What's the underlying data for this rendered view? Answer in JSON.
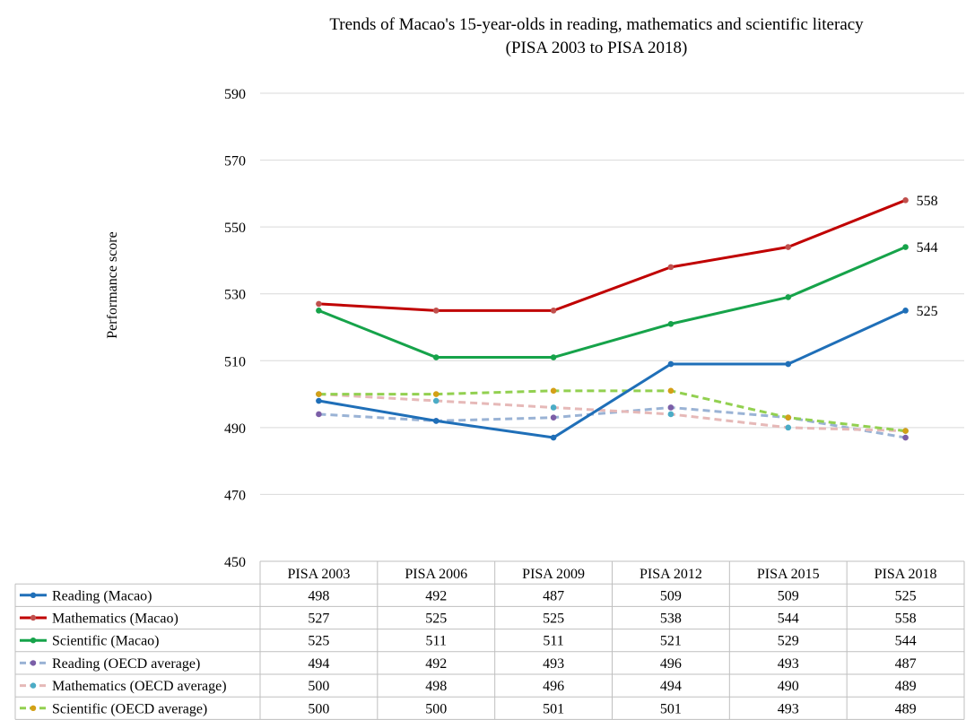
{
  "chart_data": {
    "type": "line",
    "title": "Trends of Macao's 15-year-olds in reading, mathematics and scientific literacy",
    "subtitle": "(PISA 2003 to PISA 2018)",
    "ylabel": "Performance score",
    "xlabel": "",
    "ylim": [
      450,
      590
    ],
    "yticks": [
      450,
      470,
      490,
      510,
      530,
      550,
      570,
      590
    ],
    "grid": true,
    "legend": "data-table-below",
    "categories": [
      "PISA 2003",
      "PISA 2006",
      "PISA 2009",
      "PISA 2012",
      "PISA 2015",
      "PISA 2018"
    ],
    "series": [
      {
        "name": "Reading (Macao)",
        "values": [
          498,
          492,
          487,
          509,
          509,
          525
        ],
        "color": "#1f6fb8",
        "dashed": false,
        "marker": "#1f6fb8",
        "end_label": "525"
      },
      {
        "name": "Mathematics (Macao)",
        "values": [
          527,
          525,
          525,
          538,
          544,
          558
        ],
        "color": "#c00000",
        "dashed": false,
        "marker": "#c0504d",
        "end_label": "558"
      },
      {
        "name": "Scientific (Macao)",
        "values": [
          525,
          511,
          511,
          521,
          529,
          544
        ],
        "color": "#16a34a",
        "dashed": false,
        "marker": "#16a34a",
        "end_label": "544"
      },
      {
        "name": "Reading (OECD average)",
        "values": [
          494,
          492,
          493,
          496,
          493,
          487
        ],
        "color": "#9ab3d5",
        "dashed": true,
        "marker": "#7b5ea7"
      },
      {
        "name": "Mathematics (OECD average)",
        "values": [
          500,
          498,
          496,
          494,
          490,
          489
        ],
        "color": "#e6b9b8",
        "dashed": true,
        "marker": "#4bacc6"
      },
      {
        "name": "Scientific (OECD average)",
        "values": [
          500,
          500,
          501,
          501,
          493,
          489
        ],
        "color": "#92d050",
        "dashed": true,
        "marker": "#d4a017"
      }
    ]
  }
}
